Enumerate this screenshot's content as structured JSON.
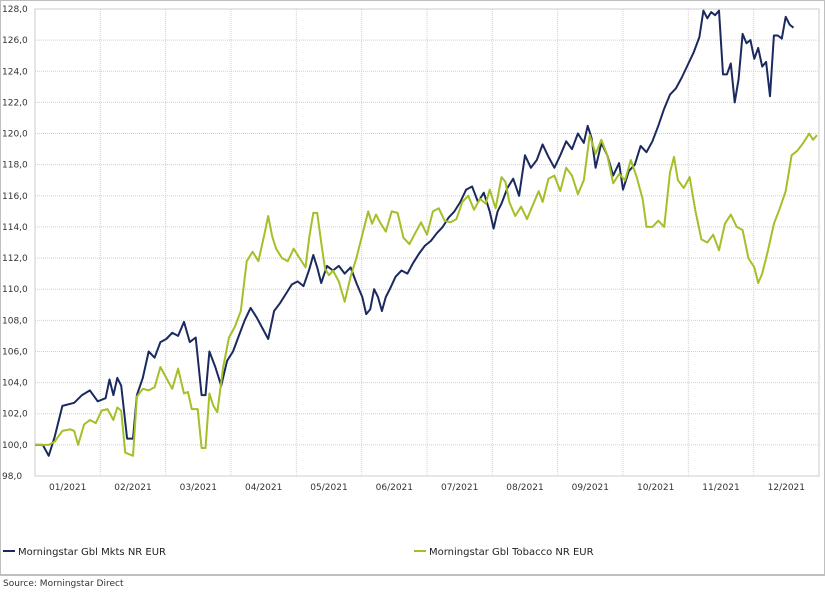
{
  "chart_data": {
    "type": "line",
    "title": "",
    "xlabel": "",
    "ylabel": "",
    "ylim": [
      98.0,
      128.0
    ],
    "y_ticks": [
      "98,0",
      "100,0",
      "102,0",
      "104,0",
      "106,0",
      "108,0",
      "110,0",
      "112,0",
      "114,0",
      "116,0",
      "118,0",
      "120,0",
      "122,0",
      "124,0",
      "126,0",
      "128,0"
    ],
    "x_ticks": [
      "01/2021",
      "02/2021",
      "03/2021",
      "04/2021",
      "05/2021",
      "06/2021",
      "07/2021",
      "08/2021",
      "09/2021",
      "10/2021",
      "11/2021",
      "12/2021"
    ],
    "grid": true,
    "legend_position": "bottom",
    "series": [
      {
        "name": "Morningstar Gbl Mkts NR EUR",
        "color": "#1b2a5e",
        "points": [
          [
            0,
            100.0
          ],
          [
            0.2,
            100.0
          ],
          [
            0.35,
            99.3
          ],
          [
            0.5,
            100.5
          ],
          [
            0.7,
            102.5
          ],
          [
            1.0,
            102.7
          ],
          [
            1.2,
            103.2
          ],
          [
            1.4,
            103.5
          ],
          [
            1.6,
            102.8
          ],
          [
            1.8,
            103.0
          ],
          [
            1.9,
            104.2
          ],
          [
            2.0,
            103.2
          ],
          [
            2.1,
            104.3
          ],
          [
            2.2,
            103.8
          ],
          [
            2.35,
            100.4
          ],
          [
            2.5,
            100.4
          ],
          [
            2.6,
            103.2
          ],
          [
            2.75,
            104.3
          ],
          [
            2.9,
            106.0
          ],
          [
            3.05,
            105.6
          ],
          [
            3.2,
            106.6
          ],
          [
            3.35,
            106.8
          ],
          [
            3.5,
            107.2
          ],
          [
            3.65,
            107.0
          ],
          [
            3.8,
            107.9
          ],
          [
            3.95,
            106.6
          ],
          [
            4.1,
            106.9
          ],
          [
            4.25,
            103.2
          ],
          [
            4.35,
            103.2
          ],
          [
            4.45,
            106.0
          ],
          [
            4.6,
            105.0
          ],
          [
            4.75,
            103.8
          ],
          [
            4.9,
            105.4
          ],
          [
            5.05,
            106.0
          ],
          [
            5.2,
            107.0
          ],
          [
            5.35,
            108.0
          ],
          [
            5.5,
            108.8
          ],
          [
            5.65,
            108.2
          ],
          [
            5.8,
            107.5
          ],
          [
            5.95,
            106.8
          ],
          [
            6.1,
            108.6
          ],
          [
            6.25,
            109.1
          ],
          [
            6.4,
            109.7
          ],
          [
            6.55,
            110.3
          ],
          [
            6.7,
            110.5
          ],
          [
            6.85,
            110.2
          ],
          [
            7.0,
            111.3
          ],
          [
            7.1,
            112.2
          ],
          [
            7.2,
            111.4
          ],
          [
            7.3,
            110.4
          ],
          [
            7.45,
            111.5
          ],
          [
            7.6,
            111.2
          ],
          [
            7.75,
            111.5
          ],
          [
            7.9,
            111.0
          ],
          [
            8.05,
            111.4
          ],
          [
            8.2,
            110.4
          ],
          [
            8.35,
            109.5
          ],
          [
            8.45,
            108.4
          ],
          [
            8.55,
            108.7
          ],
          [
            8.65,
            110.0
          ],
          [
            8.75,
            109.5
          ],
          [
            8.85,
            108.6
          ],
          [
            8.95,
            109.5
          ],
          [
            9.05,
            110.0
          ],
          [
            9.2,
            110.8
          ],
          [
            9.35,
            111.2
          ],
          [
            9.5,
            111.0
          ],
          [
            9.65,
            111.7
          ],
          [
            9.8,
            112.3
          ],
          [
            9.95,
            112.8
          ],
          [
            10.1,
            113.1
          ],
          [
            10.25,
            113.6
          ],
          [
            10.4,
            114.0
          ],
          [
            10.55,
            114.6
          ],
          [
            10.7,
            115.0
          ],
          [
            10.85,
            115.6
          ],
          [
            11.0,
            116.4
          ],
          [
            11.15,
            116.6
          ],
          [
            11.3,
            115.6
          ],
          [
            11.45,
            116.2
          ],
          [
            11.6,
            115.0
          ],
          [
            11.7,
            113.9
          ],
          [
            11.8,
            115.0
          ],
          [
            11.9,
            115.5
          ],
          [
            12.05,
            116.5
          ],
          [
            12.2,
            117.1
          ],
          [
            12.35,
            116.0
          ],
          [
            12.5,
            118.6
          ],
          [
            12.65,
            117.8
          ],
          [
            12.8,
            118.3
          ],
          [
            12.95,
            119.3
          ],
          [
            13.1,
            118.5
          ],
          [
            13.25,
            117.8
          ],
          [
            13.4,
            118.6
          ],
          [
            13.55,
            119.5
          ],
          [
            13.7,
            119.0
          ],
          [
            13.85,
            120.0
          ],
          [
            14.0,
            119.4
          ],
          [
            14.1,
            120.5
          ],
          [
            14.2,
            119.7
          ],
          [
            14.3,
            117.8
          ],
          [
            14.45,
            119.4
          ],
          [
            14.6,
            118.6
          ],
          [
            14.75,
            117.3
          ],
          [
            14.9,
            118.1
          ],
          [
            15.0,
            116.4
          ],
          [
            15.15,
            117.6
          ],
          [
            15.3,
            118.0
          ],
          [
            15.45,
            119.2
          ],
          [
            15.6,
            118.8
          ],
          [
            15.75,
            119.5
          ],
          [
            15.9,
            120.5
          ],
          [
            16.05,
            121.6
          ],
          [
            16.2,
            122.5
          ],
          [
            16.35,
            122.9
          ],
          [
            16.5,
            123.6
          ],
          [
            16.65,
            124.4
          ],
          [
            16.8,
            125.2
          ],
          [
            16.95,
            126.2
          ],
          [
            17.05,
            127.9
          ],
          [
            17.15,
            127.4
          ],
          [
            17.25,
            127.8
          ],
          [
            17.35,
            127.6
          ],
          [
            17.45,
            127.9
          ],
          [
            17.55,
            123.8
          ],
          [
            17.65,
            123.8
          ],
          [
            17.75,
            124.5
          ],
          [
            17.85,
            122.0
          ],
          [
            17.95,
            123.5
          ],
          [
            18.05,
            126.4
          ],
          [
            18.15,
            125.8
          ],
          [
            18.25,
            126.0
          ],
          [
            18.35,
            124.8
          ],
          [
            18.45,
            125.5
          ],
          [
            18.55,
            124.3
          ],
          [
            18.65,
            124.6
          ],
          [
            18.75,
            122.4
          ],
          [
            18.85,
            126.3
          ],
          [
            18.95,
            126.3
          ],
          [
            19.05,
            126.1
          ],
          [
            19.15,
            127.5
          ],
          [
            19.25,
            127.0
          ],
          [
            19.35,
            126.8
          ]
        ]
      },
      {
        "name": "Morningstar Gbl Tobacco NR EUR",
        "color": "#a3c028",
        "points": [
          [
            0,
            100.0
          ],
          [
            0.2,
            100.0
          ],
          [
            0.35,
            100.0
          ],
          [
            0.5,
            100.2
          ],
          [
            0.7,
            100.9
          ],
          [
            0.9,
            101.0
          ],
          [
            1.0,
            100.9
          ],
          [
            1.1,
            100.0
          ],
          [
            1.25,
            101.3
          ],
          [
            1.4,
            101.6
          ],
          [
            1.55,
            101.4
          ],
          [
            1.7,
            102.2
          ],
          [
            1.85,
            102.3
          ],
          [
            2.0,
            101.6
          ],
          [
            2.1,
            102.4
          ],
          [
            2.2,
            102.2
          ],
          [
            2.3,
            99.5
          ],
          [
            2.4,
            99.4
          ],
          [
            2.5,
            99.3
          ],
          [
            2.6,
            103.1
          ],
          [
            2.75,
            103.6
          ],
          [
            2.9,
            103.5
          ],
          [
            3.05,
            103.7
          ],
          [
            3.2,
            105.0
          ],
          [
            3.35,
            104.3
          ],
          [
            3.5,
            103.6
          ],
          [
            3.65,
            104.9
          ],
          [
            3.8,
            103.3
          ],
          [
            3.9,
            103.4
          ],
          [
            4.0,
            102.3
          ],
          [
            4.15,
            102.3
          ],
          [
            4.25,
            99.8
          ],
          [
            4.35,
            99.8
          ],
          [
            4.45,
            103.3
          ],
          [
            4.55,
            102.5
          ],
          [
            4.65,
            102.1
          ],
          [
            4.8,
            105.0
          ],
          [
            4.95,
            106.9
          ],
          [
            5.1,
            107.6
          ],
          [
            5.25,
            108.6
          ],
          [
            5.4,
            111.8
          ],
          [
            5.55,
            112.4
          ],
          [
            5.7,
            111.8
          ],
          [
            5.85,
            113.5
          ],
          [
            5.95,
            114.7
          ],
          [
            6.05,
            113.4
          ],
          [
            6.15,
            112.6
          ],
          [
            6.3,
            112.0
          ],
          [
            6.45,
            111.8
          ],
          [
            6.6,
            112.6
          ],
          [
            6.75,
            112.0
          ],
          [
            6.9,
            111.4
          ],
          [
            7.0,
            113.4
          ],
          [
            7.1,
            114.9
          ],
          [
            7.2,
            114.9
          ],
          [
            7.3,
            113.0
          ],
          [
            7.4,
            111.3
          ],
          [
            7.5,
            110.9
          ],
          [
            7.6,
            111.2
          ],
          [
            7.75,
            110.5
          ],
          [
            7.9,
            109.2
          ],
          [
            8.05,
            110.8
          ],
          [
            8.2,
            112.0
          ],
          [
            8.35,
            113.5
          ],
          [
            8.5,
            115.0
          ],
          [
            8.6,
            114.2
          ],
          [
            8.7,
            114.8
          ],
          [
            8.8,
            114.3
          ],
          [
            8.95,
            113.7
          ],
          [
            9.1,
            115.0
          ],
          [
            9.25,
            114.9
          ],
          [
            9.4,
            113.3
          ],
          [
            9.55,
            112.9
          ],
          [
            9.7,
            113.6
          ],
          [
            9.85,
            114.3
          ],
          [
            10.0,
            113.5
          ],
          [
            10.15,
            115.0
          ],
          [
            10.3,
            115.2
          ],
          [
            10.45,
            114.4
          ],
          [
            10.6,
            114.3
          ],
          [
            10.75,
            114.5
          ],
          [
            10.9,
            115.6
          ],
          [
            11.05,
            116.0
          ],
          [
            11.2,
            115.1
          ],
          [
            11.35,
            115.8
          ],
          [
            11.5,
            115.5
          ],
          [
            11.6,
            116.4
          ],
          [
            11.75,
            115.2
          ],
          [
            11.9,
            117.2
          ],
          [
            12.0,
            116.9
          ],
          [
            12.1,
            115.6
          ],
          [
            12.25,
            114.7
          ],
          [
            12.4,
            115.3
          ],
          [
            12.55,
            114.5
          ],
          [
            12.7,
            115.4
          ],
          [
            12.85,
            116.3
          ],
          [
            12.95,
            115.6
          ],
          [
            13.1,
            117.1
          ],
          [
            13.25,
            117.3
          ],
          [
            13.4,
            116.3
          ],
          [
            13.55,
            117.8
          ],
          [
            13.7,
            117.3
          ],
          [
            13.85,
            116.1
          ],
          [
            14.0,
            117.0
          ],
          [
            14.15,
            119.9
          ],
          [
            14.3,
            118.7
          ],
          [
            14.45,
            119.6
          ],
          [
            14.6,
            118.6
          ],
          [
            14.75,
            116.8
          ],
          [
            14.9,
            117.4
          ],
          [
            15.05,
            117.0
          ],
          [
            15.2,
            118.3
          ],
          [
            15.35,
            117.2
          ],
          [
            15.5,
            115.8
          ],
          [
            15.6,
            114.0
          ],
          [
            15.75,
            114.0
          ],
          [
            15.9,
            114.4
          ],
          [
            16.05,
            114.0
          ],
          [
            16.2,
            117.5
          ],
          [
            16.3,
            118.5
          ],
          [
            16.4,
            117.0
          ],
          [
            16.55,
            116.5
          ],
          [
            16.7,
            117.2
          ],
          [
            16.85,
            115.0
          ],
          [
            17.0,
            113.2
          ],
          [
            17.15,
            113.0
          ],
          [
            17.3,
            113.5
          ],
          [
            17.45,
            112.5
          ],
          [
            17.6,
            114.2
          ],
          [
            17.75,
            114.8
          ],
          [
            17.9,
            114.0
          ],
          [
            18.05,
            113.8
          ],
          [
            18.2,
            112.0
          ],
          [
            18.35,
            111.4
          ],
          [
            18.45,
            110.4
          ],
          [
            18.55,
            111.0
          ],
          [
            18.7,
            112.5
          ],
          [
            18.85,
            114.2
          ],
          [
            19.0,
            115.2
          ],
          [
            19.15,
            116.3
          ],
          [
            19.3,
            118.6
          ],
          [
            19.45,
            118.9
          ],
          [
            19.6,
            119.4
          ],
          [
            19.75,
            120.0
          ],
          [
            19.85,
            119.6
          ],
          [
            19.95,
            119.9
          ]
        ]
      }
    ]
  },
  "source": "Source: Morningstar Direct"
}
